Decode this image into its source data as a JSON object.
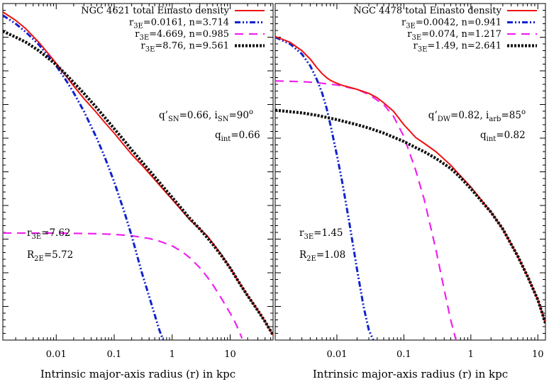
{
  "chart_data": [
    {
      "type": "line",
      "panel": "left",
      "xlabel": "Intrinsic major-axis radius (r) in kpc",
      "xscale": "log",
      "xlim": [
        0.0012,
        55
      ],
      "ylim": [
        0,
        1
      ],
      "xticks": [
        {
          "v": 0.01,
          "label": "0.01"
        },
        {
          "v": 0.1,
          "label": "0.1"
        },
        {
          "v": 1,
          "label": "1"
        },
        {
          "v": 10,
          "label": "10"
        }
      ],
      "legend_position": "top-right",
      "series": [
        {
          "name": "NGC 4621 total Einasto density",
          "color": "#ee1111",
          "style": "solid",
          "x": [
            0.0012,
            0.002,
            0.003,
            0.005,
            0.007,
            0.01,
            0.015,
            0.02,
            0.03,
            0.05,
            0.07,
            0.1,
            0.15,
            0.2,
            0.3,
            0.5,
            0.7,
            1,
            1.5,
            2,
            3,
            4,
            5,
            7,
            10,
            15,
            20,
            30,
            40,
            55
          ],
          "y": [
            0.975,
            0.95,
            0.925,
            0.885,
            0.855,
            0.822,
            0.783,
            0.755,
            0.718,
            0.675,
            0.645,
            0.615,
            0.578,
            0.552,
            0.52,
            0.477,
            0.448,
            0.418,
            0.383,
            0.358,
            0.33,
            0.31,
            0.288,
            0.255,
            0.215,
            0.165,
            0.132,
            0.088,
            0.055,
            0.015
          ]
        },
        {
          "name": "r_3E=0.0161, n=3.714",
          "label_main": "r",
          "label_sub": "3E",
          "label_rest": "=0.0161, n=3.714",
          "color": "#1122cc",
          "style": "dashdotdot",
          "x": [
            0.0012,
            0.002,
            0.003,
            0.005,
            0.007,
            0.01,
            0.015,
            0.02,
            0.03,
            0.05,
            0.07,
            0.1,
            0.15,
            0.2,
            0.3,
            0.4,
            0.5,
            0.6,
            0.7
          ],
          "y": [
            0.965,
            0.94,
            0.915,
            0.878,
            0.848,
            0.815,
            0.77,
            0.735,
            0.68,
            0.6,
            0.54,
            0.47,
            0.38,
            0.31,
            0.2,
            0.13,
            0.075,
            0.03,
            0.0
          ]
        },
        {
          "name": "r_3E=4.669, n=0.985",
          "label_main": "r",
          "label_sub": "3E",
          "label_rest": "=4.669, n=0.985",
          "color": "#ee22ee",
          "style": "dashed",
          "x": [
            0.0012,
            0.01,
            0.05,
            0.1,
            0.2,
            0.4,
            0.6,
            1,
            1.5,
            2,
            3,
            4,
            5,
            7,
            10,
            12,
            14,
            16
          ],
          "y": [
            0.318,
            0.318,
            0.316,
            0.314,
            0.31,
            0.302,
            0.294,
            0.28,
            0.262,
            0.245,
            0.215,
            0.188,
            0.165,
            0.125,
            0.08,
            0.055,
            0.03,
            0.005
          ]
        },
        {
          "name": "r_3E=8.76, n=9.561",
          "label_main": "r",
          "label_sub": "3E",
          "label_rest": "=8.76, n=9.561",
          "color": "#111111",
          "style": "dotted",
          "x": [
            0.0012,
            0.002,
            0.003,
            0.005,
            0.007,
            0.01,
            0.015,
            0.02,
            0.03,
            0.05,
            0.07,
            0.1,
            0.15,
            0.2,
            0.3,
            0.5,
            0.7,
            1,
            1.5,
            2,
            3,
            4,
            5,
            7,
            10,
            15,
            20,
            30,
            40,
            55
          ],
          "y": [
            0.918,
            0.9,
            0.885,
            0.86,
            0.84,
            0.818,
            0.788,
            0.765,
            0.733,
            0.69,
            0.66,
            0.628,
            0.592,
            0.565,
            0.53,
            0.485,
            0.455,
            0.424,
            0.388,
            0.362,
            0.33,
            0.305,
            0.285,
            0.252,
            0.214,
            0.165,
            0.132,
            0.088,
            0.055,
            0.015
          ]
        }
      ],
      "annotations": [
        {
          "parts": [
            [
              "q’",
              "n"
            ],
            [
              "SN",
              "sub"
            ],
            [
              "=0.66,  i",
              "n"
            ],
            [
              "SN",
              "sub"
            ],
            [
              "=90",
              "n"
            ],
            [
              "o",
              "sup"
            ]
          ],
          "pos": "upper-right"
        },
        {
          "parts": [
            [
              "q",
              "n"
            ],
            [
              "int",
              "sub"
            ],
            [
              "=0.66",
              "n"
            ]
          ],
          "pos": "upper-right-2"
        },
        {
          "parts": [
            [
              "r",
              "n"
            ],
            [
              "3E",
              "sub"
            ],
            [
              "=7.62",
              "n"
            ]
          ],
          "pos": "lower-left"
        },
        {
          "parts": [
            [
              "R",
              "n"
            ],
            [
              "2E",
              "sub"
            ],
            [
              "=5.72",
              "n"
            ]
          ],
          "pos": "lower-left-2"
        }
      ]
    },
    {
      "type": "line",
      "panel": "right",
      "xlabel": "Intrinsic major-axis radius (r) in kpc",
      "xscale": "log",
      "xlim": [
        0.0012,
        13
      ],
      "ylim": [
        0,
        1
      ],
      "xticks": [
        {
          "v": 0.01,
          "label": "0.01"
        },
        {
          "v": 0.1,
          "label": "0.1"
        },
        {
          "v": 1,
          "label": "1"
        },
        {
          "v": 10,
          "label": "10"
        }
      ],
      "legend_position": "top-right",
      "series": [
        {
          "name": "NGC 4478 total Einasto density",
          "color": "#ee1111",
          "style": "solid",
          "x": [
            0.0012,
            0.002,
            0.003,
            0.004,
            0.005,
            0.006,
            0.007,
            0.008,
            0.009,
            0.01,
            0.012,
            0.015,
            0.02,
            0.03,
            0.04,
            0.05,
            0.07,
            0.1,
            0.15,
            0.2,
            0.3,
            0.5,
            0.7,
            1,
            2,
            3,
            5,
            7,
            10,
            13
          ],
          "y": [
            0.902,
            0.885,
            0.86,
            0.835,
            0.81,
            0.792,
            0.78,
            0.772,
            0.767,
            0.763,
            0.757,
            0.752,
            0.745,
            0.733,
            0.72,
            0.705,
            0.68,
            0.64,
            0.602,
            0.585,
            0.56,
            0.52,
            0.488,
            0.455,
            0.38,
            0.33,
            0.25,
            0.19,
            0.12,
            0.05
          ]
        },
        {
          "name": "r_3E=0.0042, n=0.941",
          "label_main": "r",
          "label_sub": "3E",
          "label_rest": "=0.0042, n=0.941",
          "color": "#1122cc",
          "style": "dashdotdot",
          "x": [
            0.0012,
            0.002,
            0.003,
            0.004,
            0.005,
            0.006,
            0.007,
            0.008,
            0.01,
            0.012,
            0.015,
            0.02,
            0.025,
            0.03,
            0.035
          ],
          "y": [
            0.9,
            0.88,
            0.85,
            0.815,
            0.775,
            0.735,
            0.69,
            0.64,
            0.55,
            0.47,
            0.36,
            0.21,
            0.1,
            0.03,
            0.0
          ]
        },
        {
          "name": "r_3E=0.074, n=1.217",
          "label_main": "r",
          "label_sub": "3E",
          "label_rest": "=0.074, n=1.217",
          "color": "#ee22ee",
          "style": "dashed",
          "x": [
            0.0012,
            0.003,
            0.005,
            0.01,
            0.02,
            0.03,
            0.05,
            0.07,
            0.1,
            0.15,
            0.2,
            0.3,
            0.4,
            0.5,
            0.6
          ],
          "y": [
            0.77,
            0.768,
            0.765,
            0.758,
            0.745,
            0.73,
            0.7,
            0.665,
            0.605,
            0.505,
            0.42,
            0.27,
            0.15,
            0.06,
            0.0
          ]
        },
        {
          "name": "r_3E=1.49, n=2.641",
          "label_main": "r",
          "label_sub": "3E",
          "label_rest": "=1.49, n=2.641",
          "color": "#111111",
          "style": "dotted",
          "x": [
            0.0012,
            0.003,
            0.005,
            0.01,
            0.02,
            0.03,
            0.05,
            0.07,
            0.1,
            0.15,
            0.2,
            0.3,
            0.5,
            0.7,
            1,
            2,
            3,
            5,
            7,
            10,
            13
          ],
          "y": [
            0.683,
            0.675,
            0.668,
            0.655,
            0.64,
            0.63,
            0.615,
            0.603,
            0.59,
            0.572,
            0.56,
            0.54,
            0.51,
            0.483,
            0.45,
            0.38,
            0.33,
            0.25,
            0.19,
            0.12,
            0.05
          ]
        }
      ],
      "annotations": [
        {
          "parts": [
            [
              "q’",
              "n"
            ],
            [
              "DW",
              "sub"
            ],
            [
              "=0.82,  i",
              "n"
            ],
            [
              "arb",
              "sub"
            ],
            [
              "=85",
              "n"
            ],
            [
              "o",
              "sup"
            ]
          ],
          "pos": "upper-right"
        },
        {
          "parts": [
            [
              "q",
              "n"
            ],
            [
              "int",
              "sub"
            ],
            [
              "=0.82",
              "n"
            ]
          ],
          "pos": "upper-right-2"
        },
        {
          "parts": [
            [
              "r",
              "n"
            ],
            [
              "3E",
              "sub"
            ],
            [
              "=1.45",
              "n"
            ]
          ],
          "pos": "lower-left"
        },
        {
          "parts": [
            [
              "R",
              "n"
            ],
            [
              "2E",
              "sub"
            ],
            [
              "=1.08",
              "n"
            ]
          ],
          "pos": "lower-left-2"
        }
      ]
    }
  ]
}
